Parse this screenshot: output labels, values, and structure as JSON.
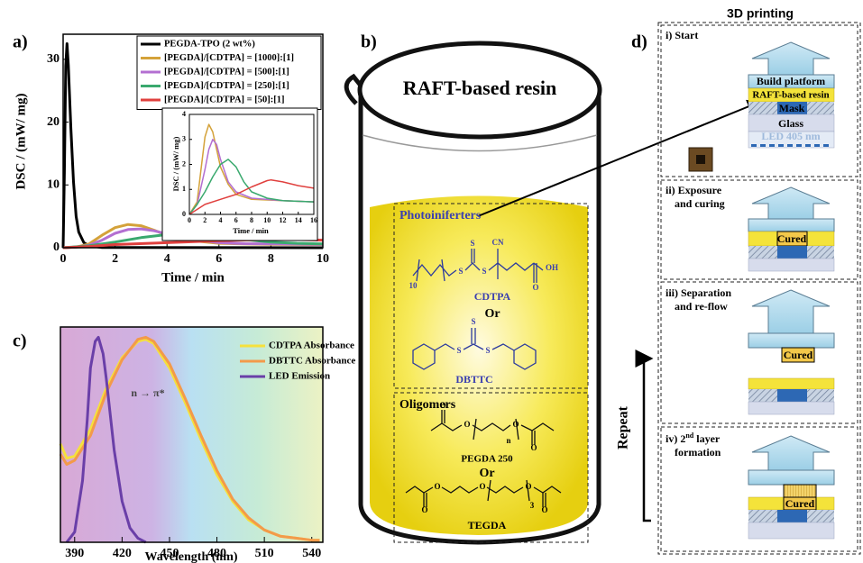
{
  "panel_labels": [
    "a)",
    "b)",
    "c)",
    "d)"
  ],
  "chart_data": [
    {
      "type": "line",
      "x_label": "Time / min",
      "y_label": "DSC / (mW/ mg)",
      "xlim": [
        0,
        10
      ],
      "ylim": [
        0,
        34
      ],
      "xticks": [
        0,
        2,
        4,
        6,
        8,
        10
      ],
      "yticks": [
        0,
        10,
        20,
        30
      ],
      "legend": "upper right",
      "series": [
        {
          "name": "PEGDA-TPO (2 wt%)",
          "color": "#000000",
          "x": [
            0,
            0.05,
            0.1,
            0.15,
            0.2,
            0.3,
            0.4,
            0.5,
            0.6,
            0.8,
            1,
            1.5,
            10
          ],
          "values": [
            0,
            12,
            29,
            32.5,
            29,
            19,
            10.5,
            5,
            2.5,
            0.8,
            0.3,
            0.05,
            0
          ]
        },
        {
          "name": "[PEGDA]/[CDTPA] = [1000]:[1]",
          "color": "#d4a23a",
          "x": [
            0,
            0.5,
            1,
            1.5,
            2,
            2.5,
            3,
            3.5,
            4,
            5,
            6,
            7,
            8,
            10
          ],
          "values": [
            0,
            0.1,
            0.6,
            2,
            3.2,
            3.7,
            3.5,
            2.8,
            2,
            1.1,
            0.7,
            0.6,
            0.55,
            0.5
          ]
        },
        {
          "name": "[PEGDA]/[CDTPA] = [500]:[1]",
          "color": "#b36fd1",
          "x": [
            0,
            0.5,
            1,
            1.5,
            2,
            2.5,
            3,
            3.5,
            4,
            5,
            6,
            7,
            8,
            10
          ],
          "values": [
            0,
            0.1,
            0.4,
            1.2,
            2.3,
            2.9,
            3,
            2.7,
            2.2,
            1.3,
            0.8,
            0.65,
            0.6,
            0.55
          ]
        },
        {
          "name": "[PEGDA]/[CDTPA] = [250]:[1]",
          "color": "#3aa96e",
          "x": [
            0,
            1,
            2,
            3,
            4,
            5,
            6,
            7,
            8,
            9,
            10
          ],
          "values": [
            0,
            0.3,
            0.9,
            1.6,
            2.1,
            2.2,
            1.8,
            1.3,
            0.9,
            0.7,
            0.6
          ]
        },
        {
          "name": "[PEGDA]/[CDTPA] = [50]:[1]",
          "color": "#e0403e",
          "x": [
            0,
            1,
            2,
            4,
            6,
            8,
            9,
            10
          ],
          "values": [
            0,
            0.2,
            0.5,
            0.8,
            1.1,
            1.35,
            1.3,
            1.2
          ]
        }
      ]
    },
    {
      "type": "line",
      "x_label": "Time / min",
      "y_label": "DSC / (mW/ mg)",
      "xlim": [
        0,
        16
      ],
      "ylim": [
        0,
        4
      ],
      "xticks": [
        0,
        2,
        4,
        6,
        8,
        10,
        12,
        14,
        16
      ],
      "yticks": [
        0,
        1,
        2,
        3,
        4
      ],
      "series": [
        {
          "color": "#d4a23a",
          "x": [
            0,
            1,
            1.5,
            2,
            2.5,
            3,
            3.5,
            4,
            5,
            6,
            8,
            12,
            16
          ],
          "values": [
            0,
            0.5,
            1.8,
            3.1,
            3.6,
            3.3,
            2.6,
            1.9,
            1.2,
            0.8,
            0.6,
            0.55,
            0.5
          ]
        },
        {
          "color": "#b36fd1",
          "x": [
            0,
            1,
            2,
            2.5,
            3,
            3.5,
            4,
            5,
            6,
            8,
            12,
            16
          ],
          "values": [
            0,
            0.4,
            1.8,
            2.6,
            3,
            2.8,
            2.2,
            1.3,
            0.9,
            0.65,
            0.55,
            0.5
          ]
        },
        {
          "color": "#3aa96e",
          "x": [
            0,
            1,
            2,
            3,
            4,
            5,
            6,
            7,
            8,
            10,
            12,
            16
          ],
          "values": [
            0,
            0.4,
            0.9,
            1.5,
            2,
            2.2,
            1.9,
            1.3,
            0.9,
            0.65,
            0.55,
            0.5
          ]
        },
        {
          "color": "#e0403e",
          "x": [
            0,
            2,
            4,
            6,
            8,
            10,
            10.5,
            12,
            14,
            16
          ],
          "values": [
            0,
            0.4,
            0.6,
            0.8,
            1.1,
            1.35,
            1.38,
            1.3,
            1.15,
            1.05
          ]
        }
      ]
    },
    {
      "type": "line",
      "x_label": "Wavelength (nm)",
      "xlim": [
        381,
        547
      ],
      "ylim": [
        0,
        1.05
      ],
      "xticks": [
        390,
        420,
        450,
        480,
        510,
        540
      ],
      "legend": "upper right",
      "annotation": "n → π*",
      "series": [
        {
          "name": "CDTPA Absorbance",
          "color": "#f5e13c",
          "x": [
            381,
            385,
            390,
            400,
            410,
            420,
            430,
            435,
            440,
            450,
            460,
            470,
            480,
            490,
            500,
            510,
            520,
            530,
            540,
            545
          ],
          "values": [
            0.48,
            0.41,
            0.42,
            0.55,
            0.75,
            0.9,
            0.98,
            0.99,
            0.97,
            0.85,
            0.68,
            0.5,
            0.33,
            0.2,
            0.11,
            0.06,
            0.03,
            0.02,
            0.01,
            0.01
          ]
        },
        {
          "name": "DBTTC Absorbance",
          "color": "#f39a4a",
          "x": [
            381,
            385,
            390,
            400,
            410,
            420,
            430,
            435,
            440,
            450,
            460,
            470,
            480,
            490,
            500,
            510,
            520,
            530,
            540,
            545
          ],
          "values": [
            0.43,
            0.38,
            0.4,
            0.52,
            0.73,
            0.89,
            0.99,
            1,
            0.98,
            0.87,
            0.7,
            0.52,
            0.35,
            0.21,
            0.12,
            0.06,
            0.03,
            0.02,
            0.01,
            0.01
          ]
        },
        {
          "name": "LED Emission",
          "color": "#6a3fa8",
          "x": [
            385,
            390,
            395,
            398,
            400,
            403,
            405,
            408,
            410,
            415,
            420,
            425,
            430,
            435
          ],
          "values": [
            0,
            0.05,
            0.3,
            0.6,
            0.85,
            0.98,
            1,
            0.92,
            0.8,
            0.45,
            0.2,
            0.07,
            0.02,
            0
          ]
        }
      ]
    }
  ],
  "beaker": {
    "title": "RAFT-based resin",
    "photoiniferters": {
      "heading": "Photoiniferters",
      "cdtpa": "CDTPA",
      "or": "Or",
      "dbttc": "DBTTC",
      "cdtpa_atoms": [
        "10",
        "S",
        "S",
        "S",
        "CN",
        "OH",
        "O"
      ],
      "dbttc_atoms": [
        "S",
        "S",
        "S"
      ]
    },
    "oligomers": {
      "heading": "Oligomers",
      "pegda": "PEGDA 250",
      "or": "Or",
      "tegda": "TEGDA",
      "pegda_atoms": [
        "O",
        "O",
        "O",
        "O",
        "n"
      ],
      "tegda_atoms": [
        "O",
        "O",
        "O",
        "O",
        "O",
        "3"
      ]
    }
  },
  "printing": {
    "title": "3D printing",
    "layers": {
      "platform": "Build platform",
      "resin": "RAFT-based resin",
      "mask": "Mask",
      "glass": "Glass",
      "led": "LED 405 nm"
    },
    "steps": [
      {
        "label": "i) Start"
      },
      {
        "label": "ii) Exposure",
        "label2": "and curing",
        "cured": "Cured"
      },
      {
        "label": "iii) Separation",
        "label2": "and re-flow",
        "cured": "Cured"
      },
      {
        "label_parts": [
          "iv) 2",
          "nd",
          " layer"
        ],
        "label2": "formation",
        "cured": "Cured"
      }
    ],
    "repeat": "Repeat"
  }
}
